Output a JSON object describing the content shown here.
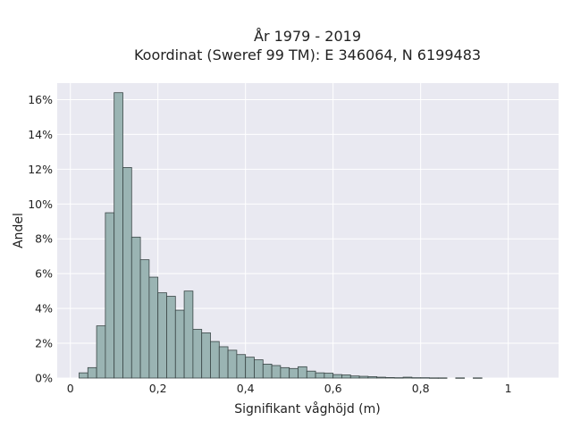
{
  "chart_data": {
    "type": "bar",
    "title": [
      "År 1979 - 2019",
      "Koordinat (Sweref 99 TM): E 346064, N 6199483"
    ],
    "xlabel": "Signifikant våghöjd (m)",
    "ylabel": "Andel",
    "xlim": [
      -0.03,
      1.115
    ],
    "ylim": [
      0,
      16.95
    ],
    "x_ticks": [
      0,
      0.2,
      0.4,
      0.6,
      0.8,
      1.0
    ],
    "x_tick_labels": [
      "0",
      "0,2",
      "0,4",
      "0,6",
      "0,8",
      "1"
    ],
    "y_ticks": [
      0,
      2,
      4,
      6,
      8,
      10,
      12,
      14,
      16
    ],
    "y_tick_labels": [
      "0%",
      "2%",
      "4%",
      "6%",
      "8%",
      "10%",
      "12%",
      "14%",
      "16%"
    ],
    "grid": true,
    "colors": {
      "plot_background": "#e9e9f1",
      "grid": "#ffffff",
      "bar_fill": "#9ab4b3",
      "bar_edge": "#3a4646"
    },
    "bin_start": 0.02,
    "bin_width": 0.02,
    "values": [
      0.3,
      0.6,
      3.0,
      9.5,
      16.4,
      12.1,
      8.1,
      6.8,
      5.8,
      4.9,
      4.7,
      3.9,
      5.0,
      2.8,
      2.6,
      2.1,
      1.8,
      1.6,
      1.35,
      1.2,
      1.05,
      0.8,
      0.72,
      0.6,
      0.55,
      0.65,
      0.4,
      0.3,
      0.28,
      0.2,
      0.18,
      0.12,
      0.1,
      0.08,
      0.05,
      0.03,
      0.02,
      0.05,
      0.02,
      0.02,
      0.01,
      0.01,
      0.0,
      0.01,
      0.0,
      0.01
    ]
  }
}
